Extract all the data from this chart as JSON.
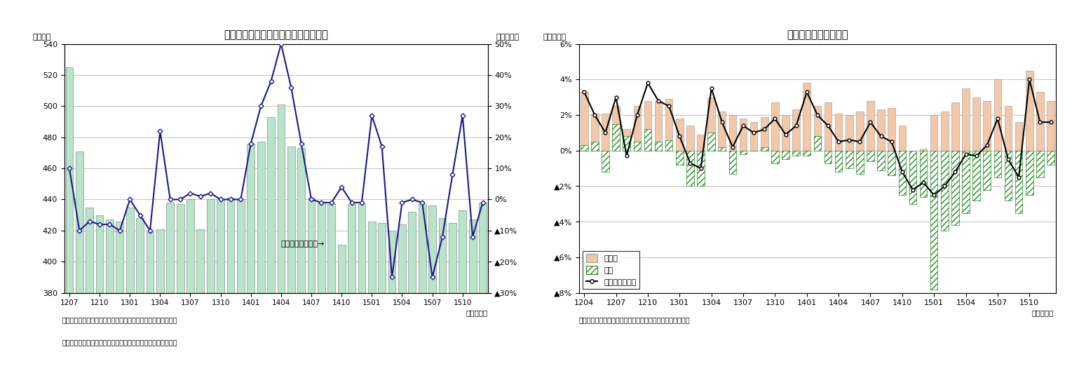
{
  "chart1": {
    "title": "新車販売台数（含む軽乗用車）の推移",
    "ylabel_left": "（万台）",
    "ylabel_right": "（前年比）",
    "note1": "（注）季節調整済・年率換算値（季節調整は当研究所による）",
    "note2": "（資料）日本自動車販売協会連合会、全国軽自動車協会連合会",
    "xlabel": "（年・月）",
    "annotation": "前年比（右目盛）→",
    "x_labels": [
      "1207",
      "1210",
      "1301",
      "1304",
      "1307",
      "1310",
      "1401",
      "1404",
      "1407",
      "1410",
      "1501",
      "1504",
      "1507",
      "1510"
    ],
    "ylim_left": [
      380,
      540
    ],
    "yticks_left": [
      380,
      400,
      420,
      440,
      460,
      480,
      500,
      520,
      540
    ],
    "ytick_labels_right": [
      "50%",
      "40%",
      "30%",
      "20%",
      "10%",
      "0%",
      "▲10%",
      "▲20%",
      "▲30%"
    ],
    "bar_x": [
      1207,
      1208,
      1209,
      1210,
      1211,
      1212,
      1301,
      1302,
      1303,
      1304,
      1305,
      1306,
      1307,
      1308,
      1309,
      1310,
      1311,
      1312,
      1401,
      1402,
      1403,
      1404,
      1405,
      1406,
      1407,
      1408,
      1409,
      1410,
      1411,
      1412,
      1501,
      1502,
      1503,
      1504,
      1505,
      1506,
      1507,
      1508,
      1509,
      1510,
      1511,
      1512
    ],
    "bar_values": [
      525,
      471,
      435,
      430,
      427,
      426,
      435,
      428,
      419,
      421,
      438,
      437,
      440,
      421,
      440,
      440,
      441,
      440,
      476,
      477,
      493,
      501,
      474,
      473,
      441,
      438,
      437,
      411,
      437,
      437,
      426,
      425,
      420,
      424,
      432,
      437,
      436,
      428,
      425,
      433,
      427,
      438
    ],
    "line_values": [
      0.1,
      -0.1,
      -0.07,
      -0.08,
      -0.08,
      -0.1,
      0.0,
      -0.05,
      -0.1,
      0.22,
      0.0,
      0.0,
      0.02,
      0.01,
      0.02,
      0.0,
      0.0,
      0.0,
      0.18,
      0.3,
      0.38,
      0.5,
      0.36,
      0.18,
      0.0,
      -0.01,
      -0.01,
      0.04,
      -0.01,
      -0.01,
      0.27,
      0.17,
      -0.25,
      -0.01,
      0.0,
      -0.01,
      -0.25,
      -0.12,
      0.08,
      0.27,
      -0.12,
      -0.01
    ],
    "bar_color": "#b8e4c9",
    "line_color": "#1a1a8c"
  },
  "chart2": {
    "title": "外食産業売上高の推移",
    "ylabel_left": "（前年比）",
    "note": "（資料）日本フードサービス協会「外食産業市場動向調査」",
    "xlabel": "（年・月）",
    "x_labels": [
      "1204",
      "1207",
      "1210",
      "1301",
      "1304",
      "1307",
      "1310",
      "1401",
      "1404",
      "1407",
      "1410",
      "1501",
      "1504",
      "1507",
      "1510"
    ],
    "ytick_labels": [
      "6%",
      "4%",
      "2%",
      "0%",
      "▲2%",
      "▲4%",
      "▲6%",
      "▲8%"
    ],
    "bar_x": [
      1204,
      1205,
      1206,
      1207,
      1208,
      1209,
      1210,
      1211,
      1212,
      1301,
      1302,
      1303,
      1304,
      1305,
      1306,
      1307,
      1308,
      1309,
      1310,
      1311,
      1312,
      1401,
      1402,
      1403,
      1404,
      1405,
      1406,
      1407,
      1408,
      1409,
      1410,
      1411,
      1412,
      1501,
      1502,
      1503,
      1504,
      1505,
      1506,
      1507,
      1508,
      1509,
      1510,
      1511,
      1512
    ],
    "kyakutanka": [
      0.033,
      0.021,
      0.021,
      0.025,
      0.012,
      0.025,
      0.028,
      0.028,
      0.029,
      0.018,
      0.014,
      0.009,
      0.03,
      0.022,
      0.02,
      0.018,
      0.016,
      0.019,
      0.027,
      0.02,
      0.023,
      0.038,
      0.025,
      0.027,
      0.021,
      0.02,
      0.022,
      0.028,
      0.023,
      0.024,
      0.014,
      -0.002,
      0.001,
      0.02,
      0.022,
      0.027,
      0.035,
      0.03,
      0.028,
      0.04,
      0.025,
      0.016,
      0.045,
      0.033,
      0.028
    ],
    "kyakusu": [
      0.003,
      0.005,
      -0.012,
      0.015,
      0.008,
      0.005,
      0.012,
      0.005,
      0.006,
      -0.008,
      -0.02,
      -0.02,
      0.01,
      0.002,
      -0.013,
      -0.002,
      0.0,
      0.002,
      -0.007,
      -0.005,
      -0.003,
      -0.003,
      0.008,
      -0.007,
      -0.012,
      -0.01,
      -0.013,
      -0.006,
      -0.011,
      -0.014,
      -0.025,
      -0.03,
      -0.026,
      -0.078,
      -0.045,
      -0.042,
      -0.035,
      -0.028,
      -0.022,
      -0.015,
      -0.028,
      -0.035,
      -0.025,
      -0.015,
      -0.008
    ],
    "gaishoku": [
      0.033,
      0.02,
      0.01,
      0.03,
      -0.003,
      0.02,
      0.038,
      0.028,
      0.025,
      0.008,
      -0.007,
      -0.01,
      0.035,
      0.016,
      0.002,
      0.014,
      0.01,
      0.012,
      0.018,
      0.009,
      0.014,
      0.033,
      0.02,
      0.014,
      0.005,
      0.006,
      0.005,
      0.016,
      0.008,
      0.005,
      -0.012,
      -0.022,
      -0.018,
      -0.025,
      -0.02,
      -0.012,
      -0.002,
      -0.003,
      0.003,
      0.018,
      -0.005,
      -0.015,
      0.04,
      0.016,
      0.016
    ],
    "legend_labels": [
      "客単価",
      "客数",
      "外食産業売上高"
    ],
    "kyakutanka_color": "#f2c8a8",
    "line_color": "#000000"
  }
}
